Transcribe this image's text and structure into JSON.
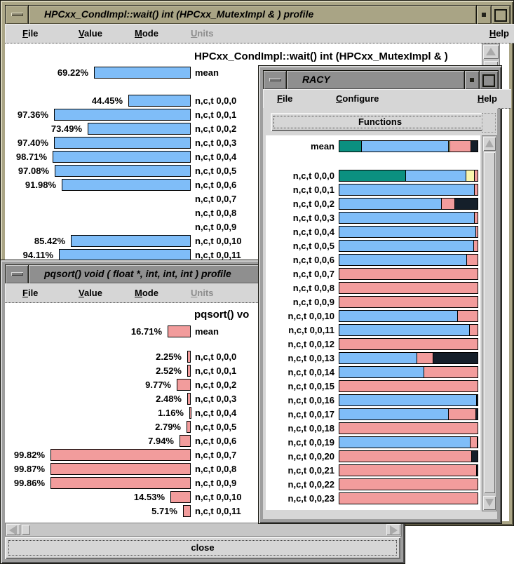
{
  "colors": {
    "blue": "#7fbdf8",
    "pink": "#f29c9c",
    "green": "#0b9080",
    "yellow": "#fbf6ae",
    "dark": "#151f2a"
  },
  "hpcxx_window": {
    "title": "HPCxx_CondImpl::wait() int (HPCxx_MutexImpl & ) profile",
    "menu": {
      "file": "File",
      "value": "Value",
      "mode": "Mode",
      "units": "Units",
      "help": "Help"
    },
    "header": "HPCxx_CondImpl::wait() int (HPCxx_MutexImpl & )",
    "mean_row": {
      "pct": "69.22%",
      "value": 69.22,
      "label": "mean"
    },
    "rows": [
      {
        "pct": "44.45%",
        "value": 44.45,
        "label": "n,c,t 0,0,0"
      },
      {
        "pct": "97.36%",
        "value": 97.36,
        "label": "n,c,t 0,0,1"
      },
      {
        "pct": "73.49%",
        "value": 73.49,
        "label": "n,c,t 0,0,2"
      },
      {
        "pct": "97.40%",
        "value": 97.4,
        "label": "n,c,t 0,0,3"
      },
      {
        "pct": "98.71%",
        "value": 98.71,
        "label": "n,c,t 0,0,4"
      },
      {
        "pct": "97.08%",
        "value": 97.08,
        "label": "n,c,t 0,0,5"
      },
      {
        "pct": "91.98%",
        "value": 91.98,
        "label": "n,c,t 0,0,6"
      },
      {
        "pct": "",
        "value": 0,
        "label": "n,c,t 0,0,7"
      },
      {
        "pct": "",
        "value": 0,
        "label": "n,c,t 0,0,8"
      },
      {
        "pct": "",
        "value": 0,
        "label": "n,c,t 0,0,9"
      },
      {
        "pct": "85.42%",
        "value": 85.42,
        "label": "n,c,t 0,0,10"
      },
      {
        "pct": "94.11%",
        "value": 94.11,
        "label": "n,c,t 0,0,11"
      }
    ]
  },
  "pqsort_window": {
    "title": "pqsort() void ( float *, int, int, int ) profile",
    "menu": {
      "file": "File",
      "value": "Value",
      "mode": "Mode",
      "units": "Units"
    },
    "header": "pqsort() vo",
    "mean_row": {
      "pct": "16.71%",
      "value": 16.71,
      "label": "mean"
    },
    "rows": [
      {
        "pct": "2.25%",
        "value": 2.25,
        "label": "n,c,t 0,0,0"
      },
      {
        "pct": "2.52%",
        "value": 2.52,
        "label": "n,c,t 0,0,1"
      },
      {
        "pct": "9.77%",
        "value": 9.77,
        "label": "n,c,t 0,0,2"
      },
      {
        "pct": "2.48%",
        "value": 2.48,
        "label": "n,c,t 0,0,3"
      },
      {
        "pct": "1.16%",
        "value": 1.16,
        "label": "n,c,t 0,0,4"
      },
      {
        "pct": "2.79%",
        "value": 2.79,
        "label": "n,c,t 0,0,5"
      },
      {
        "pct": "7.94%",
        "value": 7.94,
        "label": "n,c,t 0,0,6"
      },
      {
        "pct": "99.82%",
        "value": 99.82,
        "label": "n,c,t 0,0,7"
      },
      {
        "pct": "99.87%",
        "value": 99.87,
        "label": "n,c,t 0,0,8"
      },
      {
        "pct": "99.86%",
        "value": 99.86,
        "label": "n,c,t 0,0,9"
      },
      {
        "pct": "14.53%",
        "value": 14.53,
        "label": "n,c,t 0,0,10"
      },
      {
        "pct": "5.71%",
        "value": 5.71,
        "label": "n,c,t 0,0,11"
      }
    ],
    "close_label": "close"
  },
  "racy_window": {
    "title": "RACY",
    "menu": {
      "file": "File",
      "configure": "Configure",
      "help": "Help"
    },
    "functions_label": "Functions",
    "mean_row": {
      "label": "mean",
      "segments": [
        {
          "c": "green",
          "p": 15.5
        },
        {
          "c": "blue",
          "p": 63.0
        },
        {
          "c": "yellow",
          "p": 1.3
        },
        {
          "c": "pink",
          "p": 15.2
        },
        {
          "c": "dark",
          "p": 5.0
        }
      ]
    },
    "rows": [
      {
        "label": "n,c,t 0,0,0",
        "segments": [
          {
            "c": "green",
            "p": 47.5
          },
          {
            "c": "blue",
            "p": 44.0
          },
          {
            "c": "yellow",
            "p": 6.0
          },
          {
            "c": "pink",
            "p": 2.5
          }
        ]
      },
      {
        "label": "n,c,t 0,0,1",
        "segments": [
          {
            "c": "blue",
            "p": 97.4
          },
          {
            "c": "pink",
            "p": 2.6
          }
        ]
      },
      {
        "label": "n,c,t 0,0,2",
        "segments": [
          {
            "c": "blue",
            "p": 73.5
          },
          {
            "c": "pink",
            "p": 9.8
          },
          {
            "c": "dark",
            "p": 16.7
          }
        ]
      },
      {
        "label": "n,c,t 0,0,3",
        "segments": [
          {
            "c": "blue",
            "p": 97.4
          },
          {
            "c": "pink",
            "p": 2.5
          }
        ]
      },
      {
        "label": "n,c,t 0,0,4",
        "segments": [
          {
            "c": "blue",
            "p": 98.7
          },
          {
            "c": "pink",
            "p": 1.3
          }
        ]
      },
      {
        "label": "n,c,t 0,0,5",
        "segments": [
          {
            "c": "blue",
            "p": 97.1
          },
          {
            "c": "pink",
            "p": 2.9
          }
        ]
      },
      {
        "label": "n,c,t 0,0,6",
        "segments": [
          {
            "c": "blue",
            "p": 92.0
          },
          {
            "c": "pink",
            "p": 8.0
          }
        ]
      },
      {
        "label": "n,c,t 0,0,7",
        "segments": [
          {
            "c": "pink",
            "p": 100
          }
        ]
      },
      {
        "label": "n,c,t 0,0,8",
        "segments": [
          {
            "c": "pink",
            "p": 100
          }
        ]
      },
      {
        "label": "n,c,t 0,0,9",
        "segments": [
          {
            "c": "pink",
            "p": 100
          }
        ]
      },
      {
        "label": "n,c,t 0,0,10",
        "segments": [
          {
            "c": "blue",
            "p": 85.4
          },
          {
            "c": "pink",
            "p": 14.6
          }
        ]
      },
      {
        "label": "n,c,t 0,0,11",
        "segments": [
          {
            "c": "blue",
            "p": 94.1
          },
          {
            "c": "pink",
            "p": 5.9
          }
        ]
      },
      {
        "label": "n,c,t 0,0,12",
        "segments": [
          {
            "c": "pink",
            "p": 100
          }
        ]
      },
      {
        "label": "n,c,t 0,0,13",
        "segments": [
          {
            "c": "blue",
            "p": 56.0
          },
          {
            "c": "pink",
            "p": 11.5
          },
          {
            "c": "dark",
            "p": 32.5
          }
        ]
      },
      {
        "label": "n,c,t 0,0,14",
        "segments": [
          {
            "c": "blue",
            "p": 61.0
          },
          {
            "c": "pink",
            "p": 39.0
          }
        ]
      },
      {
        "label": "n,c,t 0,0,15",
        "segments": [
          {
            "c": "pink",
            "p": 100
          }
        ]
      },
      {
        "label": "n,c,t 0,0,16",
        "segments": [
          {
            "c": "blue",
            "p": 99.0
          },
          {
            "c": "dark",
            "p": 1.0
          }
        ]
      },
      {
        "label": "n,c,t 0,0,17",
        "segments": [
          {
            "c": "blue",
            "p": 78.5
          },
          {
            "c": "pink",
            "p": 20.0
          },
          {
            "c": "dark",
            "p": 1.5
          }
        ]
      },
      {
        "label": "n,c,t 0,0,18",
        "segments": [
          {
            "c": "pink",
            "p": 100
          }
        ]
      },
      {
        "label": "n,c,t 0,0,19",
        "segments": [
          {
            "c": "blue",
            "p": 94.5
          },
          {
            "c": "pink",
            "p": 5.0
          },
          {
            "c": "dark",
            "p": 0.5
          }
        ]
      },
      {
        "label": "n,c,t 0,0,20",
        "segments": [
          {
            "c": "pink",
            "p": 95.5
          },
          {
            "c": "dark",
            "p": 4.5
          }
        ]
      },
      {
        "label": "n,c,t 0,0,21",
        "segments": [
          {
            "c": "pink",
            "p": 99.0
          },
          {
            "c": "dark",
            "p": 1.0
          }
        ]
      },
      {
        "label": "n,c,t 0,0,22",
        "segments": [
          {
            "c": "pink",
            "p": 100
          }
        ]
      },
      {
        "label": "n,c,t 0,0,23",
        "segments": [
          {
            "c": "pink",
            "p": 100
          }
        ]
      }
    ]
  }
}
